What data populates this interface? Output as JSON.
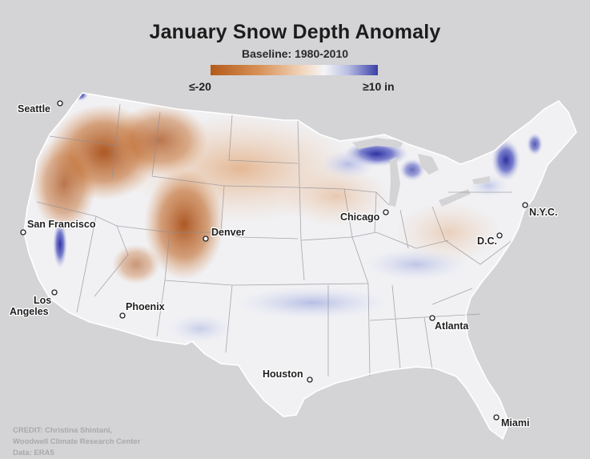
{
  "title": "January Snow Depth Anomaly",
  "subtitle": "Baseline: 1980-2010",
  "legend": {
    "min_label": "≤-20",
    "max_label": "≥10 in",
    "colors": [
      "#b35b1a",
      "#d9935a",
      "#f2d6bd",
      "#f5f5f7",
      "#b9bfe3",
      "#3a3fa8"
    ]
  },
  "cities": [
    {
      "name": "Seattle"
    },
    {
      "name": "San Francisco"
    },
    {
      "name": "Los Angeles"
    },
    {
      "name": "Phoenix"
    },
    {
      "name": "Denver"
    },
    {
      "name": "Chicago"
    },
    {
      "name": "N.Y.C."
    },
    {
      "name": "D.C."
    },
    {
      "name": "Atlanta"
    },
    {
      "name": "Houston"
    },
    {
      "name": "Miami"
    }
  ],
  "credit": {
    "line1": "CREDIT: Christina Shintani,",
    "line2": "Woodwell Climate Research Center",
    "line3": "Data: ERA5"
  }
}
